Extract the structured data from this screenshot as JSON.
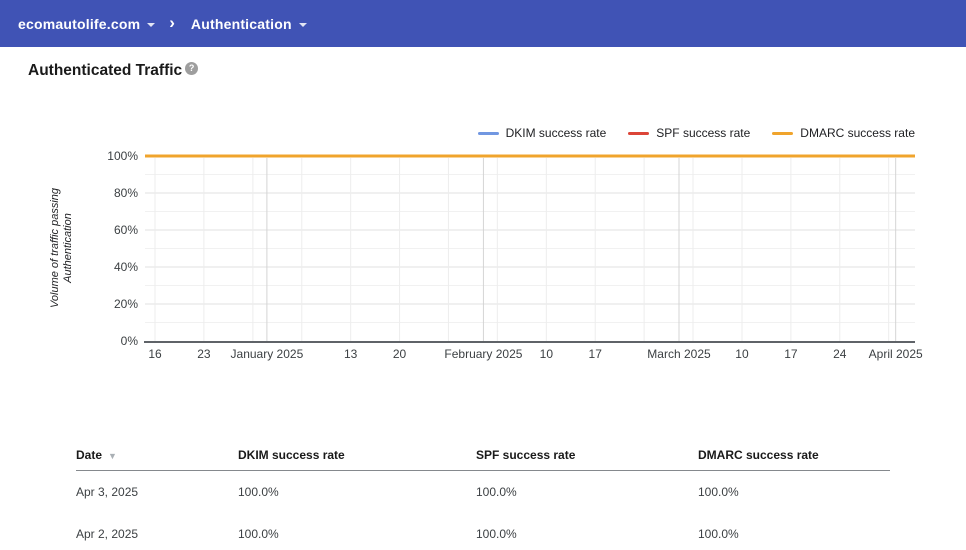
{
  "topbar": {
    "domain_menu": "ecomautolife.com",
    "section_menu": "Authentication",
    "chevron": "›",
    "bar_color": "#4053b5"
  },
  "page": {
    "title": "Authenticated Traffic"
  },
  "legend": [
    {
      "label": "DKIM success rate",
      "color": "#7197e1"
    },
    {
      "label": "SPF success rate",
      "color": "#dc4538"
    },
    {
      "label": "DMARC success rate",
      "color": "#f0a42c"
    }
  ],
  "chart_data": {
    "type": "line",
    "title": "Authenticated Traffic",
    "xlabel": "",
    "ylabel": "Volume of traffic passing Authentication",
    "ylabel_lines": [
      "Volume of traffic passing",
      "Authentication"
    ],
    "ylim": [
      0,
      100
    ],
    "y_minor_step": 10,
    "grid": true,
    "legend_position": "top-right",
    "y_ticks": [
      {
        "v": 0,
        "label": "0%"
      },
      {
        "v": 20,
        "label": "20%"
      },
      {
        "v": 40,
        "label": "40%"
      },
      {
        "v": 60,
        "label": "60%"
      },
      {
        "v": 80,
        "label": "80%"
      },
      {
        "v": 100,
        "label": "100%"
      }
    ],
    "x_range": [
      "Dec 16, 2024",
      "Apr 3, 2025"
    ],
    "x_ticks": [
      {
        "pos": 0.013,
        "label": "16",
        "type": "week"
      },
      {
        "pos": 0.0765,
        "label": "23",
        "type": "week"
      },
      {
        "pos": 0.1401,
        "label": "",
        "type": "week"
      },
      {
        "pos": 0.1583,
        "label": "January 2025",
        "type": "month"
      },
      {
        "pos": 0.2036,
        "label": "",
        "type": "week"
      },
      {
        "pos": 0.2671,
        "label": "13",
        "type": "week"
      },
      {
        "pos": 0.3306,
        "label": "20",
        "type": "week"
      },
      {
        "pos": 0.3941,
        "label": "",
        "type": "week"
      },
      {
        "pos": 0.4395,
        "label": "February 2025",
        "type": "month"
      },
      {
        "pos": 0.4576,
        "label": "",
        "type": "week"
      },
      {
        "pos": 0.5212,
        "label": "10",
        "type": "week"
      },
      {
        "pos": 0.5847,
        "label": "17",
        "type": "week"
      },
      {
        "pos": 0.6482,
        "label": "",
        "type": "week"
      },
      {
        "pos": 0.6935,
        "label": "March 2025",
        "type": "month"
      },
      {
        "pos": 0.7117,
        "label": "",
        "type": "week"
      },
      {
        "pos": 0.7753,
        "label": "10",
        "type": "week"
      },
      {
        "pos": 0.8388,
        "label": "17",
        "type": "week"
      },
      {
        "pos": 0.9023,
        "label": "24",
        "type": "week"
      },
      {
        "pos": 0.9658,
        "label": "",
        "type": "week"
      },
      {
        "pos": 0.9749,
        "label": "April 2025",
        "type": "month"
      }
    ],
    "series": [
      {
        "name": "DKIM success rate",
        "color": "#7197e1",
        "values": [
          100,
          100
        ]
      },
      {
        "name": "SPF success rate",
        "color": "#dc4538",
        "values": [
          100,
          100
        ]
      },
      {
        "name": "DMARC success rate",
        "color": "#f0a42c",
        "values": [
          100,
          100
        ]
      }
    ]
  },
  "table": {
    "columns": [
      {
        "label": "Date",
        "sorted": "desc"
      },
      {
        "label": "DKIM success rate"
      },
      {
        "label": "SPF success rate"
      },
      {
        "label": "DMARC success rate"
      }
    ],
    "rows": [
      [
        "Apr 3, 2025",
        "100.0%",
        "100.0%",
        "100.0%"
      ],
      [
        "Apr 2, 2025",
        "100.0%",
        "100.0%",
        "100.0%"
      ]
    ]
  },
  "icons": {
    "help": "?",
    "sort_desc": "▼"
  }
}
